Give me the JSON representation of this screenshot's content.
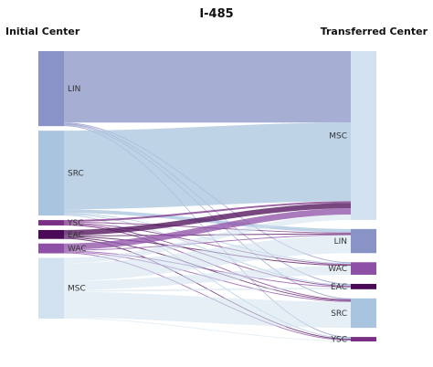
{
  "chart_data": {
    "type": "sankey",
    "title": "I-485",
    "left_header": "Initial Center",
    "right_header": "Transferred Center",
    "source_nodes": [
      {
        "id": "LIN",
        "label": "LIN",
        "color": "#8a93c6"
      },
      {
        "id": "SRC",
        "label": "SRC",
        "color": "#a9c4de"
      },
      {
        "id": "YSC",
        "label": "YSC",
        "color": "#7a2e86"
      },
      {
        "id": "EAC",
        "label": "EAC",
        "color": "#4b0a55"
      },
      {
        "id": "WAC",
        "label": "WAC",
        "color": "#8e4fa6"
      },
      {
        "id": "MSC",
        "label": "MSC",
        "color": "#d2e1ef"
      }
    ],
    "target_nodes": [
      {
        "id": "MSC",
        "label": "MSC",
        "color": "#d2e1ef"
      },
      {
        "id": "LIN",
        "label": "LIN",
        "color": "#8a93c6"
      },
      {
        "id": "WAC",
        "label": "WAC",
        "color": "#8e4fa6"
      },
      {
        "id": "EAC",
        "label": "EAC",
        "color": "#4b0a55"
      },
      {
        "id": "SRC",
        "label": "SRC",
        "color": "#a9c4de"
      },
      {
        "id": "YSC",
        "label": "YSC",
        "color": "#7a2e86"
      }
    ],
    "flows": [
      {
        "source": "LIN",
        "target": "MSC",
        "value": 80
      },
      {
        "source": "LIN",
        "target": "WAC",
        "value": 1
      },
      {
        "source": "LIN",
        "target": "EAC",
        "value": 1
      },
      {
        "source": "LIN",
        "target": "SRC",
        "value": 1
      },
      {
        "source": "LIN",
        "target": "YSC",
        "value": 1
      },
      {
        "source": "SRC",
        "target": "MSC",
        "value": 88
      },
      {
        "source": "SRC",
        "target": "LIN",
        "value": 4
      },
      {
        "source": "SRC",
        "target": "WAC",
        "value": 1
      },
      {
        "source": "SRC",
        "target": "EAC",
        "value": 1
      },
      {
        "source": "SRC",
        "target": "YSC",
        "value": 1
      },
      {
        "source": "YSC",
        "target": "MSC",
        "value": 2
      },
      {
        "source": "YSC",
        "target": "LIN",
        "value": 1
      },
      {
        "source": "YSC",
        "target": "WAC",
        "value": 1
      },
      {
        "source": "YSC",
        "target": "EAC",
        "value": 1
      },
      {
        "source": "YSC",
        "target": "SRC",
        "value": 1
      },
      {
        "source": "EAC",
        "target": "MSC",
        "value": 6
      },
      {
        "source": "EAC",
        "target": "LIN",
        "value": 1
      },
      {
        "source": "EAC",
        "target": "WAC",
        "value": 1
      },
      {
        "source": "EAC",
        "target": "SRC",
        "value": 1
      },
      {
        "source": "EAC",
        "target": "YSC",
        "value": 1
      },
      {
        "source": "WAC",
        "target": "MSC",
        "value": 7
      },
      {
        "source": "WAC",
        "target": "LIN",
        "value": 1
      },
      {
        "source": "WAC",
        "target": "EAC",
        "value": 1
      },
      {
        "source": "WAC",
        "target": "SRC",
        "value": 1
      },
      {
        "source": "WAC",
        "target": "YSC",
        "value": 1
      },
      {
        "source": "MSC",
        "target": "MSC",
        "value": 6
      },
      {
        "source": "MSC",
        "target": "LIN",
        "value": 20
      },
      {
        "source": "MSC",
        "target": "WAC",
        "value": 10
      },
      {
        "source": "MSC",
        "target": "EAC",
        "value": 2
      },
      {
        "source": "MSC",
        "target": "SRC",
        "value": 29
      },
      {
        "source": "MSC",
        "target": "YSC",
        "value": 1
      }
    ]
  }
}
